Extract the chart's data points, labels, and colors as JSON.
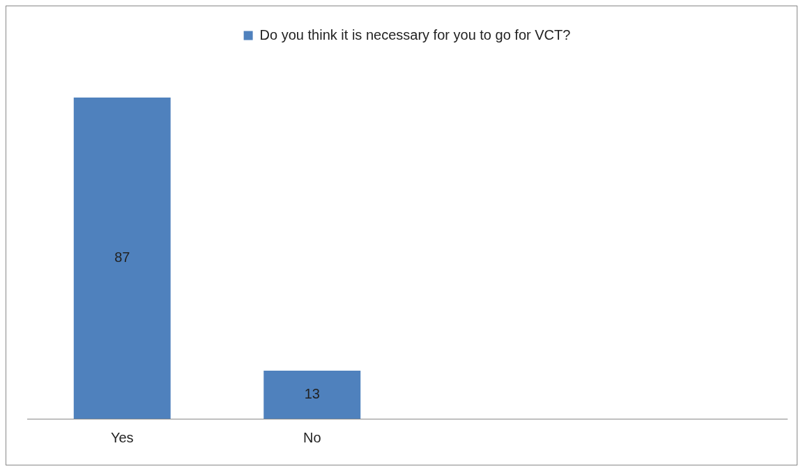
{
  "chart_data": {
    "type": "bar",
    "categories": [
      "Yes",
      "No",
      null,
      null
    ],
    "series": [
      {
        "name": "Do you think it is necessary for you to go for VCT?",
        "color": "#4f81bd",
        "values": [
          87,
          13,
          null,
          null
        ]
      }
    ],
    "data_labels": true,
    "legend": "top",
    "grid": false
  }
}
